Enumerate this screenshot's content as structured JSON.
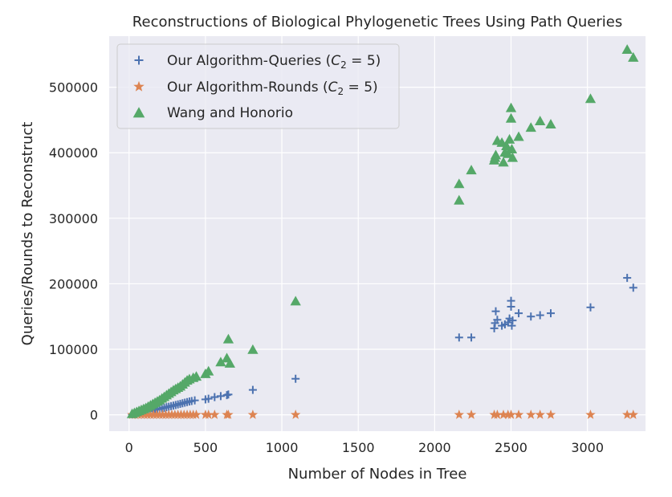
{
  "chart_data": {
    "type": "scatter",
    "title": "Reconstructions of Biological Phylogenetic Trees Using Path Queries",
    "xlabel": "Number of Nodes in Tree",
    "ylabel": "Queries/Rounds to Reconstruct",
    "xlim": [
      -130,
      3380
    ],
    "ylim": [
      -25000,
      578000
    ],
    "xticks": [
      0,
      500,
      1000,
      1500,
      2000,
      2500,
      3000
    ],
    "yticks": [
      0,
      100000,
      200000,
      300000,
      400000,
      500000
    ],
    "grid": true,
    "background": "#eaeaf2",
    "legend_position": "top-left",
    "series": [
      {
        "name": "Our Algorithm-Queries",
        "legend_main": "Our Algorithm-Queries (",
        "legend_var": "C",
        "legend_sub": "2",
        "legend_eq": " = 5)",
        "marker": "plus",
        "color": "#4c72b0",
        "x": [
          20,
          35,
          50,
          65,
          80,
          95,
          110,
          125,
          140,
          155,
          170,
          185,
          200,
          215,
          230,
          245,
          260,
          275,
          290,
          305,
          320,
          335,
          350,
          365,
          380,
          395,
          410,
          430,
          500,
          520,
          560,
          600,
          640,
          650,
          810,
          1090,
          2160,
          2240,
          2390,
          2395,
          2400,
          2410,
          2440,
          2460,
          2480,
          2490,
          2500,
          2500,
          2505,
          2510,
          2550,
          2630,
          2690,
          2760,
          3020,
          3260,
          3300
        ],
        "y": [
          800,
          1500,
          2200,
          2900,
          3600,
          4300,
          5000,
          5700,
          6400,
          7100,
          7800,
          8500,
          9200,
          10000,
          10800,
          11600,
          12400,
          13200,
          14000,
          14900,
          15800,
          16700,
          17600,
          18500,
          19400,
          20300,
          21000,
          22000,
          23500,
          24500,
          27000,
          28500,
          30000,
          31000,
          38000,
          55000,
          118000,
          118000,
          132000,
          140000,
          158000,
          145000,
          136000,
          138000,
          141000,
          147000,
          165000,
          174000,
          136000,
          144000,
          155000,
          150000,
          152000,
          155000,
          164000,
          209000,
          194000
        ]
      },
      {
        "name": "Our Algorithm-Rounds",
        "legend_main": "Our Algorithm-Rounds (",
        "legend_var": "C",
        "legend_sub": "2",
        "legend_eq": " = 5)",
        "marker": "star",
        "color": "#dd8452",
        "x": [
          20,
          40,
          60,
          80,
          100,
          120,
          140,
          160,
          180,
          200,
          220,
          240,
          260,
          280,
          300,
          320,
          340,
          360,
          380,
          400,
          420,
          440,
          500,
          520,
          560,
          640,
          650,
          810,
          1090,
          2160,
          2240,
          2390,
          2410,
          2450,
          2480,
          2500,
          2550,
          2630,
          2690,
          2760,
          3020,
          3260,
          3300
        ],
        "y": [
          0,
          0,
          0,
          0,
          0,
          0,
          0,
          0,
          0,
          0,
          0,
          0,
          0,
          0,
          0,
          0,
          0,
          0,
          0,
          0,
          0,
          0,
          0,
          0,
          0,
          0,
          0,
          0,
          0,
          0,
          0,
          0,
          0,
          0,
          0,
          0,
          0,
          0,
          0,
          0,
          0,
          0,
          0
        ]
      },
      {
        "name": "Wang and Honorio",
        "legend_main": "Wang and Honorio",
        "legend_var": "",
        "legend_sub": "",
        "legend_eq": "",
        "marker": "triangle",
        "color": "#55a868",
        "x": [
          20,
          35,
          50,
          65,
          80,
          95,
          110,
          125,
          140,
          155,
          170,
          185,
          200,
          215,
          230,
          245,
          260,
          275,
          290,
          305,
          320,
          335,
          350,
          365,
          380,
          395,
          420,
          440,
          500,
          520,
          600,
          640,
          650,
          660,
          810,
          1090,
          2160,
          2160,
          2240,
          2390,
          2395,
          2400,
          2410,
          2440,
          2450,
          2460,
          2470,
          2480,
          2490,
          2500,
          2500,
          2505,
          2510,
          2550,
          2630,
          2690,
          2760,
          3020,
          3260,
          3300
        ],
        "y": [
          1000,
          2500,
          4000,
          5500,
          7000,
          8500,
          10000,
          12000,
          14000,
          16000,
          18000,
          20000,
          22000,
          24500,
          27000,
          29500,
          32000,
          34500,
          37000,
          39000,
          41000,
          43000,
          46000,
          49000,
          52000,
          54000,
          56000,
          58000,
          62000,
          66000,
          80000,
          86000,
          115000,
          78000,
          99000,
          173000,
          327000,
          352000,
          373000,
          388000,
          392000,
          396000,
          418000,
          415000,
          385000,
          400000,
          410000,
          398000,
          420000,
          452000,
          468000,
          405000,
          392000,
          424000,
          438000,
          448000,
          443000,
          482000,
          557000,
          545000
        ]
      }
    ]
  }
}
